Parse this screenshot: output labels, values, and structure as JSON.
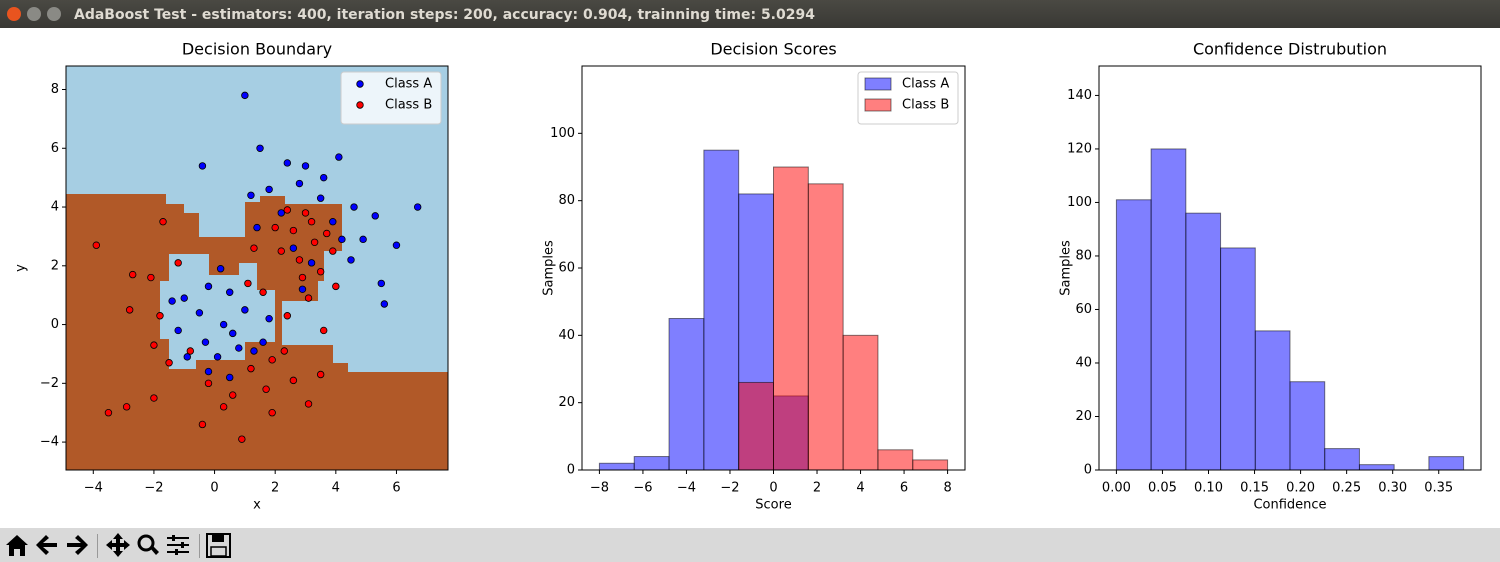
{
  "window_title": "AdaBoost Test - estimators: 400, iteration steps: 200, accuracy: 0.904, trainning time: 5.0294",
  "chart_data": [
    {
      "type": "scatter",
      "title": "Decision Boundary",
      "x_label": "x",
      "y_label": "y",
      "xlim": [
        -4.9,
        7.7
      ],
      "ylim": [
        -4.95,
        8.8
      ],
      "xticks": [
        {
          "value": -4,
          "label": "−4"
        },
        {
          "value": -2,
          "label": "−2"
        },
        0,
        2,
        4,
        6
      ],
      "yticks": [
        {
          "value": -4,
          "label": "−4"
        },
        {
          "value": -2,
          "label": "−2"
        },
        0,
        2,
        4,
        6,
        8
      ],
      "legend": "upper right",
      "series": [
        {
          "name": "Class A",
          "color": "#0000ff",
          "x": [
            1,
            6.7,
            1.5,
            -0.4,
            6,
            5.6,
            4.1,
            2.4,
            3,
            3.6,
            4.6,
            5.3,
            5.5,
            4.5,
            4.9,
            3.9,
            2.8,
            1.8,
            1.2,
            1.4,
            2.2,
            3.5,
            4.2,
            0.2,
            -0.2,
            0.5,
            -1,
            -0.5,
            0.3,
            1,
            0.6,
            -0.3,
            -1.2,
            1.3,
            0.1,
            -0.9,
            1.8,
            -1.4,
            0.8,
            1.6,
            0.5,
            2.9,
            3.2,
            2.6,
            -0.2
          ],
          "y": [
            7.8,
            4,
            6,
            5.4,
            2.7,
            0.7,
            5.7,
            5.5,
            5.4,
            5,
            4,
            3.7,
            1.4,
            2.2,
            2.9,
            3.5,
            4.8,
            4.6,
            4.4,
            3.3,
            3.8,
            4.3,
            2.9,
            1.9,
            1.3,
            1.1,
            0.9,
            0.4,
            0,
            0.5,
            -0.3,
            -0.6,
            -0.2,
            -0.9,
            -1.1,
            -1.1,
            0.2,
            0.8,
            -0.8,
            -0.6,
            -1.8,
            1.2,
            2.1,
            2.6,
            -1.6
          ]
        },
        {
          "name": "Class B",
          "color": "#ff0000",
          "x": [
            -3.9,
            -3.5,
            -2.9,
            -2,
            0.9,
            -0.4,
            -2.8,
            1.9,
            3.1,
            3.5,
            -1.7,
            -2.7,
            -2.1,
            -1.2,
            -2,
            -1.5,
            -0.2,
            0.6,
            1.7,
            2.6,
            0.3,
            1.2,
            2.3,
            3.6,
            2.6,
            3,
            3.3,
            2.2,
            3.7,
            2.8,
            3.2,
            2.4,
            3.9,
            2,
            3.5,
            2.9,
            1.6,
            2.4,
            3.1,
            4,
            1.3,
            1.1,
            -0.8,
            -1.8,
            1.9
          ],
          "y": [
            2.7,
            -3,
            -2.8,
            -2.5,
            -3.9,
            -3.4,
            0.5,
            -3,
            -2.7,
            -1.7,
            3.5,
            1.7,
            1.6,
            2.1,
            -0.7,
            -1.3,
            -2,
            -2.4,
            -2.2,
            -1.9,
            -2.8,
            -1.5,
            -0.9,
            -0.2,
            3.2,
            3.8,
            2.8,
            2.5,
            3.1,
            2.2,
            3.5,
            3.9,
            2.5,
            3.3,
            1.8,
            1.6,
            1.1,
            0.3,
            0.9,
            1.3,
            2.6,
            1.4,
            -0.9,
            0.3,
            -1.2
          ]
        }
      ]
    },
    {
      "type": "histogram",
      "title": "Decision Scores",
      "x_label": "Score",
      "y_label": "Samples",
      "xlim": [
        -8.8,
        8.8
      ],
      "ylim": [
        0,
        120
      ],
      "xticks": [
        {
          "value": -8,
          "label": "−8"
        },
        {
          "value": -6,
          "label": "−6"
        },
        {
          "value": -4,
          "label": "−4"
        },
        {
          "value": -2,
          "label": "−2"
        },
        0,
        2,
        4,
        6,
        8
      ],
      "yticks": [
        0,
        20,
        40,
        60,
        80,
        100
      ],
      "legend": "upper right",
      "bins": [
        -8,
        -6.4,
        -4.8,
        -3.2,
        -1.6,
        0,
        1.6,
        3.2,
        4.8,
        6.4,
        8
      ],
      "series": [
        {
          "name": "Class A",
          "color": "#0000ff",
          "values": [
            2,
            4,
            45,
            95,
            82,
            22,
            0,
            0,
            0,
            0
          ]
        },
        {
          "name": "Class B",
          "color": "#ff0000",
          "values": [
            0,
            0,
            0,
            0,
            26,
            90,
            85,
            40,
            6,
            3
          ]
        }
      ]
    },
    {
      "type": "histogram",
      "title": "Confidence Distrubution",
      "x_label": "Confidence",
      "y_label": "Samples",
      "xlim": [
        -0.0189,
        0.3959
      ],
      "ylim": [
        0,
        151
      ],
      "xticks": [
        {
          "value": 0,
          "label": "0.00"
        },
        0.05,
        {
          "value": 0.1,
          "label": "0.10"
        },
        0.15,
        {
          "value": 0.2,
          "label": "0.20"
        },
        0.25,
        {
          "value": 0.3,
          "label": "0.30"
        },
        0.35
      ],
      "yticks": [
        0,
        20,
        40,
        60,
        80,
        100,
        120,
        140
      ],
      "bins": [
        0,
        0.0377,
        0.0754,
        0.1131,
        0.1508,
        0.1885,
        0.2262,
        0.2639,
        0.3016,
        0.3393,
        0.377
      ],
      "series": [
        {
          "color": "#0000ff",
          "values": [
            101,
            120,
            96,
            83,
            52,
            33,
            8,
            2,
            0,
            5
          ]
        }
      ]
    }
  ]
}
